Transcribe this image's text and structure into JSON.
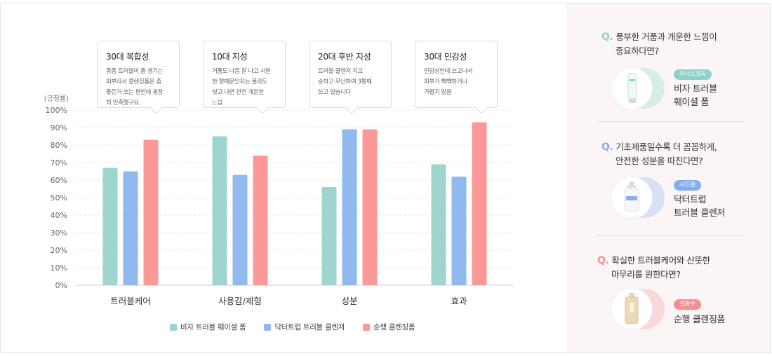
{
  "chart_data": {
    "type": "bar",
    "ylabel": "(긍정률)",
    "ylim": [
      0,
      100
    ],
    "yticks": [
      "0%",
      "10%",
      "20%",
      "30%",
      "40%",
      "50%",
      "60%",
      "70%",
      "80%",
      "90%",
      "100%"
    ],
    "categories": [
      "트러블케어",
      "사용감/제형",
      "성분",
      "효과"
    ],
    "series": [
      {
        "name": "비자 트러블 훼이셜 폼",
        "color": "#9ed6cf",
        "values": [
          67,
          85,
          56,
          69
        ]
      },
      {
        "name": "닥터트럽 트러블 클렌져",
        "color": "#90b9ee",
        "values": [
          65,
          63,
          89,
          62
        ]
      },
      {
        "name": "순행 클렌징폼",
        "color": "#fc9898",
        "values": [
          83,
          74,
          89,
          93
        ]
      }
    ],
    "grid": true,
    "legend": "bottom"
  },
  "bubbles": [
    {
      "title": "30대 복합성",
      "lines": [
        "종종 트러블이 좀 생기는",
        "피부라서 클렌징폼은 좀",
        "좋은거 쓰는 편인데 굉장",
        "히 만족했구요"
      ]
    },
    {
      "title": "10대 지성",
      "lines": [
        "거품도 나름 잘 나고 시원",
        "한 향때문인지는 몰라도",
        "씻고 나면 완전 개운한",
        "느낌"
      ]
    },
    {
      "title": "20대 후반 지성",
      "lines": [
        "트러블 클렌저 치고",
        "순하고 무난하여 3통째",
        "쓰고 있습니다"
      ]
    },
    {
      "title": "30대 민감성",
      "lines": [
        "민감성인데 쓰고나서",
        "피부가 빽빽하거나",
        "가렵지 않음"
      ]
    }
  ],
  "side": [
    {
      "q_mark": "Q.",
      "q_line1": "풍부한 거품과 개운한 느낌이",
      "q_line2": "중요하다면?",
      "badge": "이니스프리",
      "name_line1": "비자 트러블",
      "name_line2": "훼이셜 폼",
      "color": "#8fd1c6",
      "shadow": "#d6ede9",
      "product_icon": "tube-icon"
    },
    {
      "q_mark": "Q.",
      "q_line1": "기초제품일수록 더 꼼꼼하게,",
      "q_line2": "안전한 성분을 따진다면?",
      "badge": "시드물",
      "name_line1": "닥터트럽",
      "name_line2": "트러블 클렌저",
      "color": "#86adea",
      "shadow": "#d7e1f4",
      "product_icon": "pump-bottle-icon"
    },
    {
      "q_mark": "Q.",
      "q_line1": "확실한 트러블케어와 산뜻한",
      "q_line2": "마무리를 원한다면?",
      "badge": "설화수",
      "name_line1": "순행 클렌징폼",
      "name_line2": "",
      "color": "#f68f8f",
      "shadow": "#f9d8d8",
      "product_icon": "cream-bottle-icon"
    }
  ]
}
